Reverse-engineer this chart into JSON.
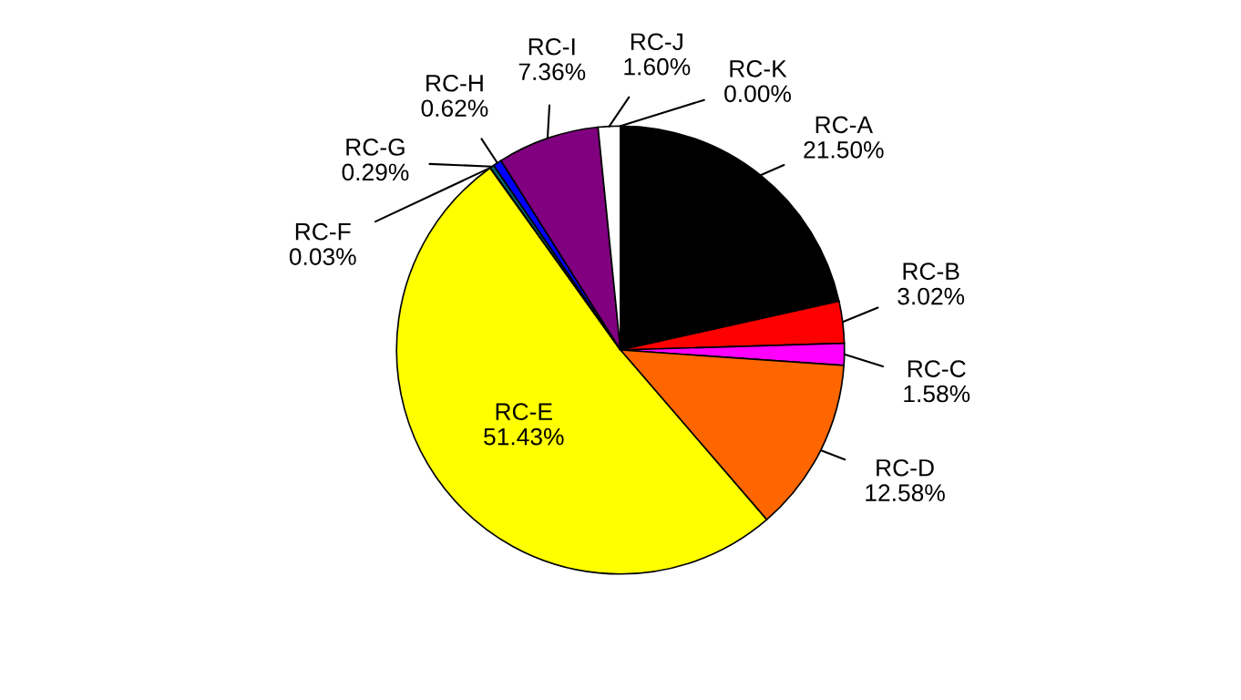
{
  "chart_data": {
    "type": "pie",
    "categories": [
      "RC-A",
      "RC-B",
      "RC-C",
      "RC-D",
      "RC-E",
      "RC-F",
      "RC-G",
      "RC-H",
      "RC-I",
      "RC-J",
      "RC-K"
    ],
    "values": [
      21.5,
      3.02,
      1.58,
      12.58,
      51.43,
      0.03,
      0.29,
      0.62,
      7.36,
      1.6,
      0.0
    ],
    "colors": [
      "#000000",
      "#ff0000",
      "#ff00ff",
      "#ff6600",
      "#ffff00",
      "#008000",
      "#006666",
      "#0000ff",
      "#800080",
      "#ffffff",
      "#c0c0c0"
    ],
    "value_labels": [
      "21.50%",
      "3.02%",
      "1.58%",
      "12.58%",
      "51.43%",
      "0.03%",
      "0.29%",
      "0.62%",
      "7.36%",
      "1.60%",
      "0.00%"
    ]
  }
}
